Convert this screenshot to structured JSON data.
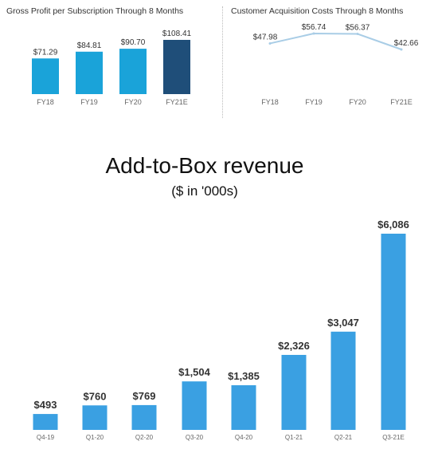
{
  "colors": {
    "gp_bar": "#1aa3d9",
    "gp_bar_highlight": "#1f4e79",
    "cac_line": "#a9cde6",
    "atb_bar": "#3aa0e2",
    "text_dark": "#333333",
    "text_light": "#666666"
  },
  "chart_data": [
    {
      "type": "bar",
      "title": "Gross Profit per Subscription Through 8 Months",
      "categories": [
        "FY18",
        "FY19",
        "FY20",
        "FY21E"
      ],
      "values": [
        71.29,
        84.81,
        90.7,
        108.41
      ],
      "data_labels": [
        "$71.29",
        "$84.81",
        "$90.70",
        "$108.41"
      ],
      "highlight_index": 3,
      "xlabel": "",
      "ylabel": ""
    },
    {
      "type": "line",
      "title": "Customer Acquisition Costs Through 8 Months",
      "categories": [
        "FY18",
        "FY19",
        "FY20",
        "FY21E"
      ],
      "values": [
        47.98,
        56.74,
        56.37,
        42.66
      ],
      "data_labels": [
        "$47.98",
        "$56.74",
        "$56.37",
        "$42.66"
      ],
      "xlabel": "",
      "ylabel": ""
    },
    {
      "type": "bar",
      "title": "Add-to-Box revenue",
      "subtitle": "($ in '000s)",
      "categories": [
        "Q4-19",
        "Q1-20",
        "Q2-20",
        "Q3-20",
        "Q4-20",
        "Q1-21",
        "Q2-21",
        "Q3-21E"
      ],
      "values": [
        493,
        760,
        769,
        1504,
        1385,
        2326,
        3047,
        6086
      ],
      "data_labels": [
        "$493",
        "$760",
        "$769",
        "$1,504",
        "$1,385",
        "$2,326",
        "$3,047",
        "$6,086"
      ],
      "xlabel": "",
      "ylabel": ""
    }
  ]
}
